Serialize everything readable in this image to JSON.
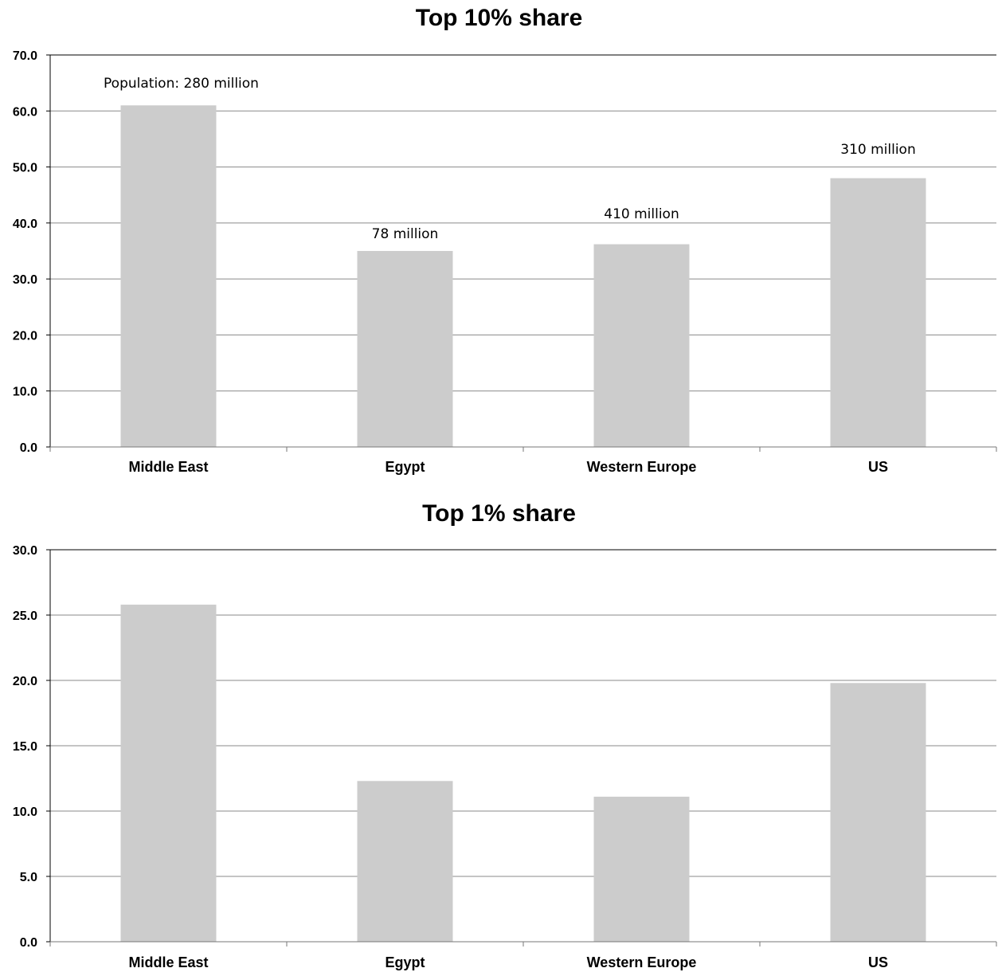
{
  "chart_data": [
    {
      "type": "bar",
      "title": "Top 10% share",
      "categories": [
        "Middle East",
        "Egypt",
        "Western Europe",
        "US"
      ],
      "values": [
        61.0,
        35.0,
        36.2,
        48.0
      ],
      "ylim": [
        0,
        70
      ],
      "yticks": [
        "0.0",
        "10.0",
        "20.0",
        "30.0",
        "40.0",
        "50.0",
        "60.0",
        "70.0"
      ],
      "grid": true,
      "bar_color": "#cccccc",
      "annotations": [
        "Population: 280 million",
        "78 million",
        "410 million",
        "310 million"
      ]
    },
    {
      "type": "bar",
      "title": "Top 1% share",
      "categories": [
        "Middle East",
        "Egypt",
        "Western Europe",
        "US"
      ],
      "values": [
        25.8,
        12.3,
        11.1,
        19.8
      ],
      "ylim": [
        0,
        30
      ],
      "yticks": [
        "0.0",
        "5.0",
        "10.0",
        "15.0",
        "20.0",
        "25.0",
        "30.0"
      ],
      "grid": true,
      "bar_color": "#cccccc"
    }
  ]
}
